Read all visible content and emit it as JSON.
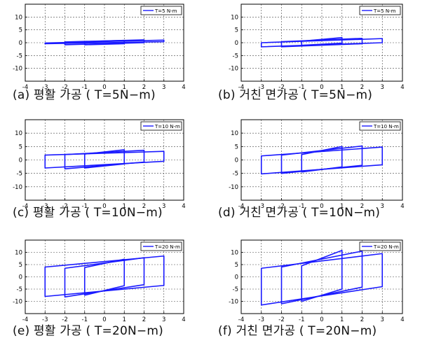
{
  "chart_data": [
    {
      "type": "line",
      "caption": "(a) 평활 가공 ( T=5N−m)",
      "legend": "T=5 N-m",
      "legend_placement": "top-right",
      "color": "#1a1aff",
      "xlim": [
        -4,
        4
      ],
      "ylim": [
        -15,
        15
      ],
      "xticks": [
        "-4",
        "-3",
        "-2",
        "-1",
        "0",
        "1",
        "2",
        "3",
        "4"
      ],
      "yticks": [
        "10",
        "5",
        "0",
        "-5",
        "-10"
      ],
      "ytick_values": [
        10,
        5,
        0,
        -5,
        -10
      ],
      "grid": true,
      "loops": [
        {
          "x0": -3,
          "x1": 3,
          "y_low": [
            -0.4,
            0.4
          ],
          "y_high": [
            -0.1,
            1.0
          ]
        },
        {
          "x0": -2,
          "x1": 2,
          "y_low": [
            -0.8,
            0.0
          ],
          "y_high": [
            0.3,
            1.1
          ]
        },
        {
          "x0": -1,
          "x1": 1,
          "y_low": [
            -0.8,
            -0.4
          ],
          "y_high": [
            0.4,
            0.9
          ]
        }
      ]
    },
    {
      "type": "line",
      "caption": "(b) 거친 면가공 ( T=5N−m)",
      "legend": "T=5 N-m",
      "legend_placement": "top-right",
      "color": "#1a1aff",
      "xlim": [
        -4,
        4
      ],
      "ylim": [
        -15,
        15
      ],
      "xticks": [
        "-4",
        "-3",
        "-2",
        "-1",
        "0",
        "1",
        "2",
        "3",
        "4"
      ],
      "yticks": [
        "10",
        "5",
        "0",
        "-5",
        "-10"
      ],
      "ytick_values": [
        10,
        5,
        0,
        -5,
        -10
      ],
      "grid": true,
      "loops": [
        {
          "x0": -3,
          "x1": 3,
          "y_low": [
            -1.6,
            0.0
          ],
          "y_high": [
            0.0,
            1.6
          ]
        },
        {
          "x0": -2,
          "x1": 2,
          "y_low": [
            -1.6,
            -0.4
          ],
          "y_high": [
            0.4,
            1.7
          ]
        },
        {
          "x0": -1,
          "x1": 1,
          "y_low": [
            -1.0,
            -0.2
          ],
          "y_high": [
            0.6,
            2.0
          ]
        }
      ]
    },
    {
      "type": "line",
      "caption": "(c) 평활 가공 ( T=10N−m)",
      "legend": "T=10 N-m",
      "legend_placement": "top-right",
      "color": "#1a1aff",
      "xlim": [
        -4,
        4
      ],
      "ylim": [
        -15,
        15
      ],
      "xticks": [
        "-4",
        "-3",
        "-2",
        "-1",
        "0",
        "1",
        "2",
        "3",
        "4"
      ],
      "yticks": [
        "10",
        "5",
        "0",
        "-5",
        "-10"
      ],
      "ytick_values": [
        10,
        5,
        0,
        -5,
        -10
      ],
      "grid": true,
      "loops": [
        {
          "x0": -3,
          "x1": 3,
          "y_low": [
            -3.0,
            -0.5
          ],
          "y_high": [
            1.8,
            3.2
          ]
        },
        {
          "x0": -2,
          "x1": 2,
          "y_low": [
            -3.3,
            -0.8
          ],
          "y_high": [
            2.0,
            3.6
          ]
        },
        {
          "x0": -1,
          "x1": 1,
          "y_low": [
            -3.0,
            -1.5
          ],
          "y_high": [
            2.2,
            3.8
          ]
        }
      ]
    },
    {
      "type": "line",
      "caption": "(d) 거친 면가공 ( T=10N−m)",
      "legend": "T=10 N-m",
      "legend_placement": "top-right",
      "color": "#1a1aff",
      "xlim": [
        -4,
        4
      ],
      "ylim": [
        -15,
        15
      ],
      "xticks": [
        "-4",
        "-3",
        "-2",
        "-1",
        "0",
        "1",
        "2",
        "3",
        "4"
      ],
      "yticks": [
        "10",
        "5",
        "0",
        "-5",
        "-10"
      ],
      "ytick_values": [
        10,
        5,
        0,
        -5,
        -10
      ],
      "grid": true,
      "loops": [
        {
          "x0": -3,
          "x1": 3,
          "y_low": [
            -5.2,
            -1.8
          ],
          "y_high": [
            1.5,
            4.8
          ]
        },
        {
          "x0": -2,
          "x1": 2,
          "y_low": [
            -5.0,
            -2.0
          ],
          "y_high": [
            1.8,
            5.2
          ]
        },
        {
          "x0": -1,
          "x1": 1,
          "y_low": [
            -4.5,
            -2.6
          ],
          "y_high": [
            2.0,
            5.0
          ]
        }
      ]
    },
    {
      "type": "line",
      "caption": "(e) 평활 가공 ( T=20N−m)",
      "legend": "T=20 N-m",
      "legend_placement": "top-right",
      "color": "#1a1aff",
      "xlim": [
        -4,
        4
      ],
      "ylim": [
        -15,
        15
      ],
      "xticks": [
        "-4",
        "-3",
        "-2",
        "-1",
        "0",
        "1",
        "2",
        "3",
        "4"
      ],
      "yticks": [
        "10",
        "5",
        "0",
        "-5",
        "-10"
      ],
      "ytick_values": [
        10,
        5,
        0,
        -5,
        -10
      ],
      "grid": true,
      "loops": [
        {
          "x0": -3,
          "x1": 3,
          "y_low": [
            -8.0,
            -3.5
          ],
          "y_high": [
            4.0,
            8.5
          ]
        },
        {
          "x0": -2,
          "x1": 2,
          "y_low": [
            -8.2,
            -3.2
          ],
          "y_high": [
            3.5,
            7.8
          ]
        },
        {
          "x0": -1,
          "x1": 1,
          "y_low": [
            -7.5,
            -3.6
          ],
          "y_high": [
            3.8,
            7.2
          ]
        }
      ]
    },
    {
      "type": "line",
      "caption": "(f) 거친 면가공 ( T=20N−m)",
      "legend": "T=20 N-m",
      "legend_placement": "top-right",
      "color": "#1a1aff",
      "xlim": [
        -4,
        4
      ],
      "ylim": [
        -15,
        15
      ],
      "xticks": [
        "-4",
        "-3",
        "-2",
        "-1",
        "0",
        "1",
        "2",
        "3",
        "4"
      ],
      "yticks": [
        "10",
        "5",
        "0",
        "-5",
        "-10"
      ],
      "ytick_values": [
        10,
        5,
        0,
        -5,
        -10
      ],
      "grid": true,
      "loops": [
        {
          "x0": -3,
          "x1": 3,
          "y_low": [
            -11.5,
            -4.0
          ],
          "y_high": [
            3.5,
            9.5
          ]
        },
        {
          "x0": -2,
          "x1": 2,
          "y_low": [
            -11.0,
            -4.2
          ],
          "y_high": [
            4.0,
            10.5
          ]
        },
        {
          "x0": -1,
          "x1": 1,
          "y_low": [
            -10.0,
            -5.0
          ],
          "y_high": [
            4.5,
            10.8
          ]
        }
      ]
    }
  ]
}
